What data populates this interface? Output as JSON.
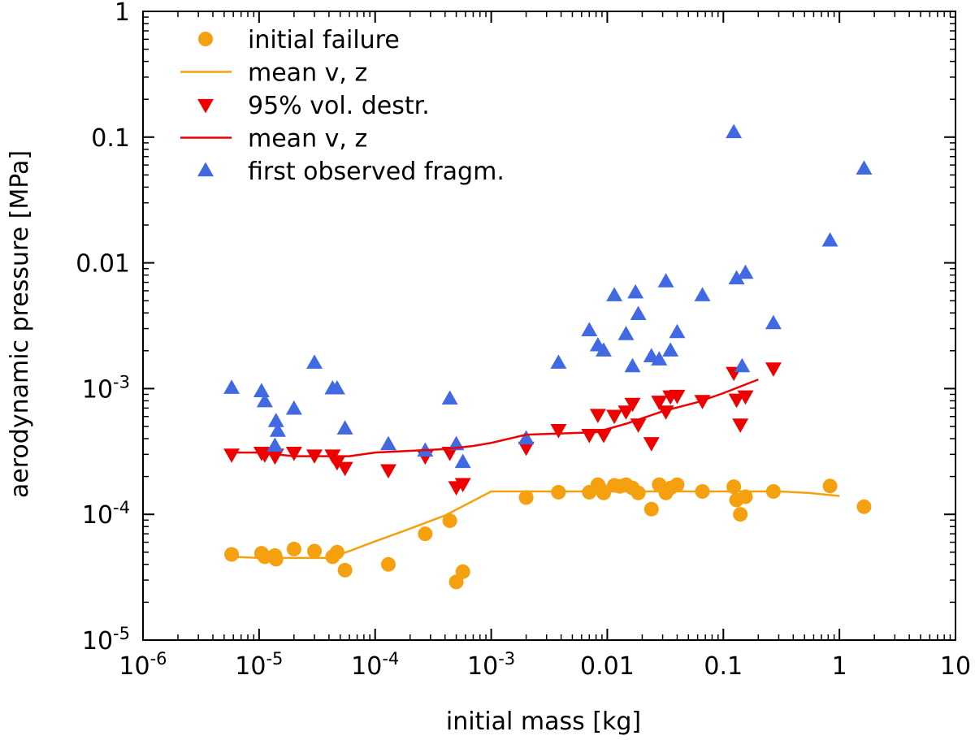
{
  "colors": {
    "initial_failure": "#F5A10F",
    "vol_destr": "#EE0000",
    "first_fragm": "#4169E1",
    "axis": "#000000",
    "background": "#ffffff"
  },
  "chart_data": {
    "type": "scatter",
    "title": "",
    "xlabel": "initial mass [kg]",
    "ylabel": "aerodynamic pressure [MPa]",
    "xscale": "log",
    "yscale": "log",
    "xlim": [
      1e-06,
      10
    ],
    "ylim": [
      1e-05,
      1
    ],
    "grid": false,
    "legend_position": "top-left",
    "x_ticks": [
      {
        "value": 1e-06,
        "base": "10",
        "exp": "-6"
      },
      {
        "value": 1e-05,
        "base": "10",
        "exp": "-5"
      },
      {
        "value": 0.0001,
        "base": "10",
        "exp": "-4"
      },
      {
        "value": 0.001,
        "base": "10",
        "exp": "-3"
      },
      {
        "value": 0.01,
        "base": "0.01",
        "exp": ""
      },
      {
        "value": 0.1,
        "base": "0.1",
        "exp": ""
      },
      {
        "value": 1,
        "base": "1",
        "exp": ""
      },
      {
        "value": 10,
        "base": "10",
        "exp": ""
      }
    ],
    "y_ticks": [
      {
        "value": 1e-05,
        "base": "10",
        "exp": "-5"
      },
      {
        "value": 0.0001,
        "base": "10",
        "exp": "-4"
      },
      {
        "value": 0.001,
        "base": "10",
        "exp": "-3"
      },
      {
        "value": 0.01,
        "base": "0.01",
        "exp": ""
      },
      {
        "value": 0.1,
        "base": "0.1",
        "exp": ""
      },
      {
        "value": 1,
        "base": "1",
        "exp": ""
      }
    ],
    "series": [
      {
        "name": "initial failure",
        "kind": "scatter",
        "marker": "circle",
        "color_key": "initial_failure",
        "points": [
          [
            5.8e-06,
            4.8e-05
          ],
          [
            1.05e-05,
            4.9e-05
          ],
          [
            1.12e-05,
            4.6e-05
          ],
          [
            1.37e-05,
            4.7e-05
          ],
          [
            1.4e-05,
            4.4e-05
          ],
          [
            2e-05,
            5.3e-05
          ],
          [
            3e-05,
            5.1e-05
          ],
          [
            4.3e-05,
            4.6e-05
          ],
          [
            4.7e-05,
            5e-05
          ],
          [
            5.5e-05,
            3.6e-05
          ],
          [
            0.00013,
            4e-05
          ],
          [
            0.00027,
            7e-05
          ],
          [
            0.00044,
            8.9e-05
          ],
          [
            0.0005,
            2.9e-05
          ],
          [
            0.00057,
            3.5e-05
          ],
          [
            0.002,
            0.000136
          ],
          [
            0.0038,
            0.00015
          ],
          [
            0.007,
            0.00015
          ],
          [
            0.0083,
            0.000172
          ],
          [
            0.0087,
            0.00016
          ],
          [
            0.0093,
            0.000148
          ],
          [
            0.0115,
            0.00017
          ],
          [
            0.0128,
            0.000167
          ],
          [
            0.0145,
            0.000172
          ],
          [
            0.0165,
            0.000162
          ],
          [
            0.0185,
            0.000148
          ],
          [
            0.024,
            0.00011
          ],
          [
            0.028,
            0.000172
          ],
          [
            0.032,
            0.000148
          ],
          [
            0.035,
            0.000162
          ],
          [
            0.04,
            0.000172
          ],
          [
            0.066,
            0.000152
          ],
          [
            0.123,
            0.000166
          ],
          [
            0.13,
            0.00013
          ],
          [
            0.14,
            0.0001
          ],
          [
            0.155,
            0.000138
          ],
          [
            0.27,
            0.000152
          ],
          [
            0.83,
            0.000168
          ],
          [
            1.63,
            0.000115
          ]
        ]
      },
      {
        "name": "mean v, z",
        "kind": "line",
        "color_key": "initial_failure",
        "points": [
          [
            5.8e-06,
            4.6e-05
          ],
          [
            1e-05,
            4.5e-05
          ],
          [
            2e-05,
            4.5e-05
          ],
          [
            4e-05,
            4.5e-05
          ],
          [
            6e-05,
            5.1e-05
          ],
          [
            0.0001,
            6.1e-05
          ],
          [
            0.0002,
            7.7e-05
          ],
          [
            0.0004,
            9.8e-05
          ],
          [
            0.0006,
            0.000119
          ],
          [
            0.001,
            0.000152
          ],
          [
            0.003,
            0.000152
          ],
          [
            0.01,
            0.000152
          ],
          [
            0.03,
            0.000152
          ],
          [
            0.1,
            0.000152
          ],
          [
            0.3,
            0.000152
          ],
          [
            0.55,
            0.000148
          ],
          [
            1.0,
            0.00014
          ]
        ]
      },
      {
        "name": "95% vol. destr.",
        "kind": "scatter",
        "marker": "triangle-down",
        "color_key": "vol_destr",
        "points": [
          [
            5.8e-06,
            0.0003
          ],
          [
            1.05e-05,
            0.00031
          ],
          [
            1.12e-05,
            0.0003
          ],
          [
            1.37e-05,
            0.00029
          ],
          [
            1.4e-05,
            0.0003
          ],
          [
            2e-05,
            0.00031
          ],
          [
            3e-05,
            0.000295
          ],
          [
            4.3e-05,
            0.000295
          ],
          [
            4.7e-05,
            0.00026
          ],
          [
            5.5e-05,
            0.000235
          ],
          [
            0.00013,
            0.000225
          ],
          [
            0.00027,
            0.00029
          ],
          [
            0.00044,
            0.00031
          ],
          [
            0.0005,
            0.000165
          ],
          [
            0.00057,
            0.000175
          ],
          [
            0.002,
            0.00034
          ],
          [
            0.0038,
            0.00047
          ],
          [
            0.007,
            0.00043
          ],
          [
            0.0083,
            0.00062
          ],
          [
            0.0093,
            0.00043
          ],
          [
            0.0115,
            0.00061
          ],
          [
            0.0145,
            0.00066
          ],
          [
            0.0165,
            0.00076
          ],
          [
            0.0185,
            0.00052
          ],
          [
            0.024,
            0.00037
          ],
          [
            0.028,
            0.00079
          ],
          [
            0.032,
            0.00066
          ],
          [
            0.035,
            0.00087
          ],
          [
            0.04,
            0.00088
          ],
          [
            0.066,
            0.0008
          ],
          [
            0.123,
            0.00134
          ],
          [
            0.13,
            0.00082
          ],
          [
            0.14,
            0.00052
          ],
          [
            0.155,
            0.00087
          ],
          [
            0.27,
            0.00145
          ]
        ]
      },
      {
        "name": "mean v, z",
        "kind": "line",
        "color_key": "vol_destr",
        "points": [
          [
            5.8e-06,
            0.00031
          ],
          [
            1e-05,
            0.00031
          ],
          [
            2e-05,
            0.00029
          ],
          [
            4e-05,
            0.00029
          ],
          [
            6e-05,
            0.00029
          ],
          [
            0.0001,
            0.00031
          ],
          [
            0.0002,
            0.00032
          ],
          [
            0.0004,
            0.00033
          ],
          [
            0.0007,
            0.00035
          ],
          [
            0.001,
            0.00037
          ],
          [
            0.002,
            0.00043
          ],
          [
            0.004,
            0.00044
          ],
          [
            0.008,
            0.00045
          ],
          [
            0.015,
            0.00053
          ],
          [
            0.03,
            0.00066
          ],
          [
            0.06,
            0.00078
          ],
          [
            0.1,
            0.00092
          ],
          [
            0.2,
            0.00118
          ]
        ]
      },
      {
        "name": "first observed fragm.",
        "kind": "scatter",
        "marker": "triangle-up",
        "color_key": "first_fragm",
        "points": [
          [
            5.8e-06,
            0.00101
          ],
          [
            1.05e-05,
            0.00095
          ],
          [
            1.12e-05,
            0.00079
          ],
          [
            1.37e-05,
            0.00035
          ],
          [
            1.4e-05,
            0.00055
          ],
          [
            1.45e-05,
            0.00046
          ],
          [
            2e-05,
            0.00069
          ],
          [
            3e-05,
            0.0016
          ],
          [
            4.3e-05,
            0.001
          ],
          [
            4.7e-05,
            0.001
          ],
          [
            5.5e-05,
            0.00048
          ],
          [
            0.00013,
            0.00036
          ],
          [
            0.00027,
            0.00032
          ],
          [
            0.00044,
            0.00083
          ],
          [
            0.0005,
            0.00036
          ],
          [
            0.00057,
            0.00026
          ],
          [
            0.002,
            0.0004
          ],
          [
            0.0038,
            0.0016
          ],
          [
            0.007,
            0.0029
          ],
          [
            0.0083,
            0.0022
          ],
          [
            0.0093,
            0.002
          ],
          [
            0.0115,
            0.0055
          ],
          [
            0.0145,
            0.0027
          ],
          [
            0.0165,
            0.0015
          ],
          [
            0.0175,
            0.0058
          ],
          [
            0.0185,
            0.0039
          ],
          [
            0.024,
            0.0018
          ],
          [
            0.028,
            0.0017
          ],
          [
            0.032,
            0.0071
          ],
          [
            0.035,
            0.002
          ],
          [
            0.04,
            0.0028
          ],
          [
            0.066,
            0.0055
          ],
          [
            0.123,
            0.109
          ],
          [
            0.13,
            0.0075
          ],
          [
            0.145,
            0.0015
          ],
          [
            0.155,
            0.0083
          ],
          [
            0.27,
            0.0033
          ],
          [
            0.83,
            0.015
          ],
          [
            1.63,
            0.056
          ]
        ]
      }
    ],
    "legend": [
      {
        "label": "initial failure",
        "symbol": "circle",
        "color_key": "initial_failure"
      },
      {
        "label": "mean v, z",
        "symbol": "line",
        "color_key": "initial_failure"
      },
      {
        "label": "95% vol. destr.",
        "symbol": "triangle-down",
        "color_key": "vol_destr"
      },
      {
        "label": "mean v, z",
        "symbol": "line",
        "color_key": "vol_destr"
      },
      {
        "label": "first observed fragm.",
        "symbol": "triangle-up",
        "color_key": "first_fragm"
      }
    ]
  }
}
